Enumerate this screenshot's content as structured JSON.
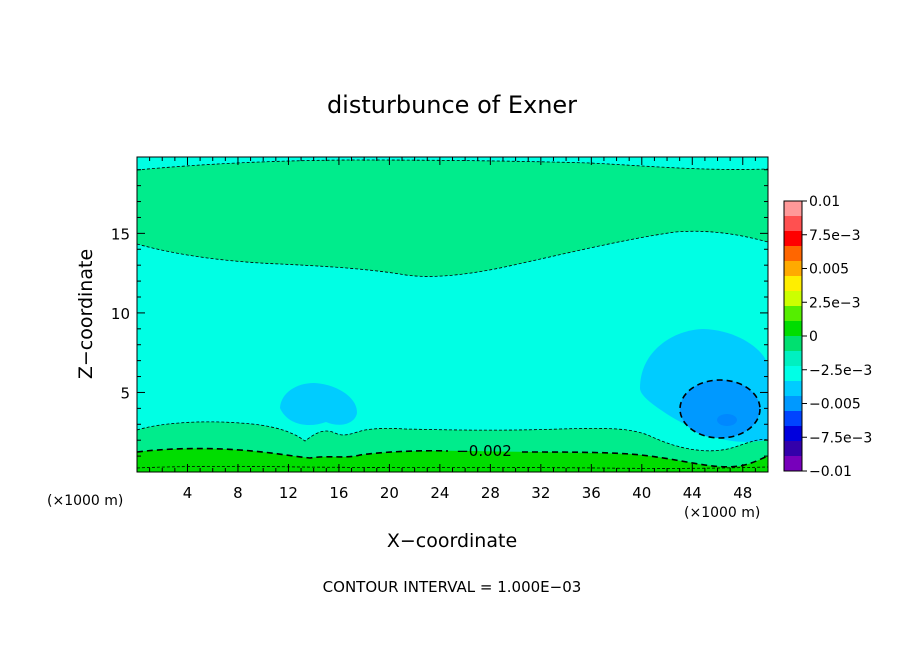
{
  "chart_data": {
    "type": "heatmap",
    "title": "disturbunce of Exner",
    "xlabel": "X−coordinate",
    "ylabel": "Z−coordinate",
    "x_unit": "(×1000 m)",
    "x_unit_right": "(×1000 m)",
    "xlim": [
      0,
      50
    ],
    "ylim": [
      0,
      19.8
    ],
    "x_ticks": [
      4,
      8,
      12,
      16,
      20,
      24,
      28,
      32,
      36,
      40,
      44,
      48
    ],
    "y_ticks": [
      5,
      10,
      15
    ],
    "footer": "CONTOUR INTERVAL = 1.000E−03",
    "contour_interval": 0.001,
    "contour_label": "−0.002",
    "colorbar": {
      "labels": [
        "0.01",
        "7.5e−3",
        "0.005",
        "2.5e−3",
        "0",
        "−2.5e−3",
        "−0.005",
        "−7.5e−3",
        "−0.01"
      ],
      "colors": [
        "#ff9999",
        "#ff5050",
        "#ff0000",
        "#ff6600",
        "#ffaa00",
        "#ffee00",
        "#ccff00",
        "#55ee00",
        "#00dd00",
        "#00e070",
        "#00f0c0",
        "#00ffe6",
        "#00ccff",
        "#0099ff",
        "#0044ff",
        "#0000dd",
        "#3300aa",
        "#7700bb"
      ]
    },
    "regions": [
      {
        "level": -0.002,
        "color": "#00ec8c",
        "note": "upper band z>13, near-surface band z<3"
      },
      {
        "level": -0.003,
        "color": "#00ffe4",
        "note": "mid layer"
      },
      {
        "level": -0.004,
        "color": "#00ccff",
        "note": "cells near x=14,z=4 and x=46,z=5"
      },
      {
        "level": -0.005,
        "color": "#0099ff",
        "note": "core near x=46,z=4"
      },
      {
        "level": 0.0,
        "color": "#00dd00",
        "note": "surface layer z<1.5"
      }
    ]
  }
}
